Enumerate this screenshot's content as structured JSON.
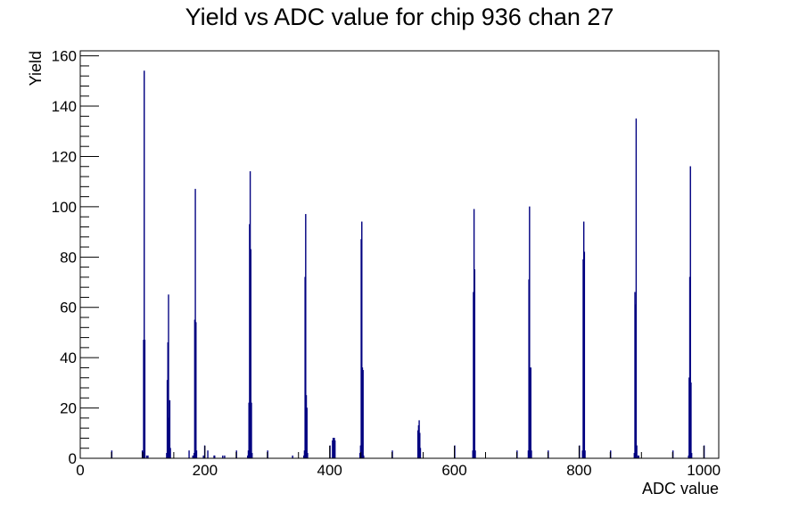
{
  "chart_data": {
    "type": "bar",
    "title": "Yield vs ADC value for chip 936 chan 27",
    "xlabel": "ADC value",
    "ylabel": "Yield",
    "xlim": [
      0,
      1024
    ],
    "ylim": [
      0,
      162
    ],
    "x_ticks": [
      0,
      200,
      400,
      600,
      800,
      1000
    ],
    "y_ticks": [
      0,
      20,
      40,
      60,
      80,
      100,
      120,
      140,
      160
    ],
    "grid": false,
    "legend": "none",
    "series_color": "#000080",
    "series": [
      {
        "bins": [
          [
            50,
            3
          ],
          [
            99,
            3
          ],
          [
            101,
            47
          ],
          [
            102,
            154
          ],
          [
            103,
            47
          ],
          [
            106,
            1
          ],
          [
            108,
            1
          ],
          [
            138,
            2
          ],
          [
            139,
            31
          ],
          [
            140,
            46
          ],
          [
            141,
            65
          ],
          [
            142,
            16
          ],
          [
            143,
            23
          ],
          [
            144,
            4
          ],
          [
            174,
            3
          ],
          [
            180,
            1
          ],
          [
            182,
            2
          ],
          [
            183,
            55
          ],
          [
            184,
            107
          ],
          [
            185,
            54
          ],
          [
            186,
            3
          ],
          [
            197,
            1
          ],
          [
            199,
            5
          ],
          [
            204,
            3
          ],
          [
            214,
            1
          ],
          [
            215,
            1
          ],
          [
            228,
            1
          ],
          [
            231,
            1
          ],
          [
            250,
            3
          ],
          [
            268,
            1
          ],
          [
            269,
            3
          ],
          [
            270,
            22
          ],
          [
            271,
            93
          ],
          [
            272,
            114
          ],
          [
            273,
            83
          ],
          [
            274,
            22
          ],
          [
            275,
            2
          ],
          [
            300,
            3
          ],
          [
            340,
            1
          ],
          [
            358,
            1
          ],
          [
            359,
            3
          ],
          [
            360,
            72
          ],
          [
            361,
            97
          ],
          [
            362,
            25
          ],
          [
            363,
            20
          ],
          [
            364,
            2
          ],
          [
            400,
            5
          ],
          [
            404,
            7
          ],
          [
            405,
            8
          ],
          [
            406,
            8
          ],
          [
            407,
            8
          ],
          [
            408,
            7
          ],
          [
            448,
            2
          ],
          [
            449,
            5
          ],
          [
            450,
            87
          ],
          [
            451,
            94
          ],
          [
            452,
            36
          ],
          [
            453,
            35
          ],
          [
            454,
            1
          ],
          [
            500,
            3
          ],
          [
            541,
            11
          ],
          [
            542,
            13
          ],
          [
            543,
            15
          ],
          [
            544,
            10
          ],
          [
            545,
            4
          ],
          [
            600,
            5
          ],
          [
            629,
            3
          ],
          [
            630,
            66
          ],
          [
            631,
            99
          ],
          [
            632,
            75
          ],
          [
            633,
            3
          ],
          [
            700,
            3
          ],
          [
            718,
            3
          ],
          [
            719,
            71
          ],
          [
            720,
            100
          ],
          [
            721,
            32
          ],
          [
            722,
            36
          ],
          [
            723,
            3
          ],
          [
            750,
            3
          ],
          [
            800,
            5
          ],
          [
            805,
            3
          ],
          [
            806,
            79
          ],
          [
            807,
            94
          ],
          [
            808,
            82
          ],
          [
            809,
            3
          ],
          [
            850,
            3
          ],
          [
            888,
            2
          ],
          [
            889,
            66
          ],
          [
            890,
            61
          ],
          [
            891,
            135
          ],
          [
            892,
            5
          ],
          [
            894,
            1
          ],
          [
            895,
            1
          ],
          [
            950,
            3
          ],
          [
            975,
            1
          ],
          [
            976,
            32
          ],
          [
            977,
            72
          ],
          [
            978,
            116
          ],
          [
            979,
            30
          ],
          [
            980,
            2
          ],
          [
            1000,
            5
          ]
        ]
      }
    ]
  }
}
